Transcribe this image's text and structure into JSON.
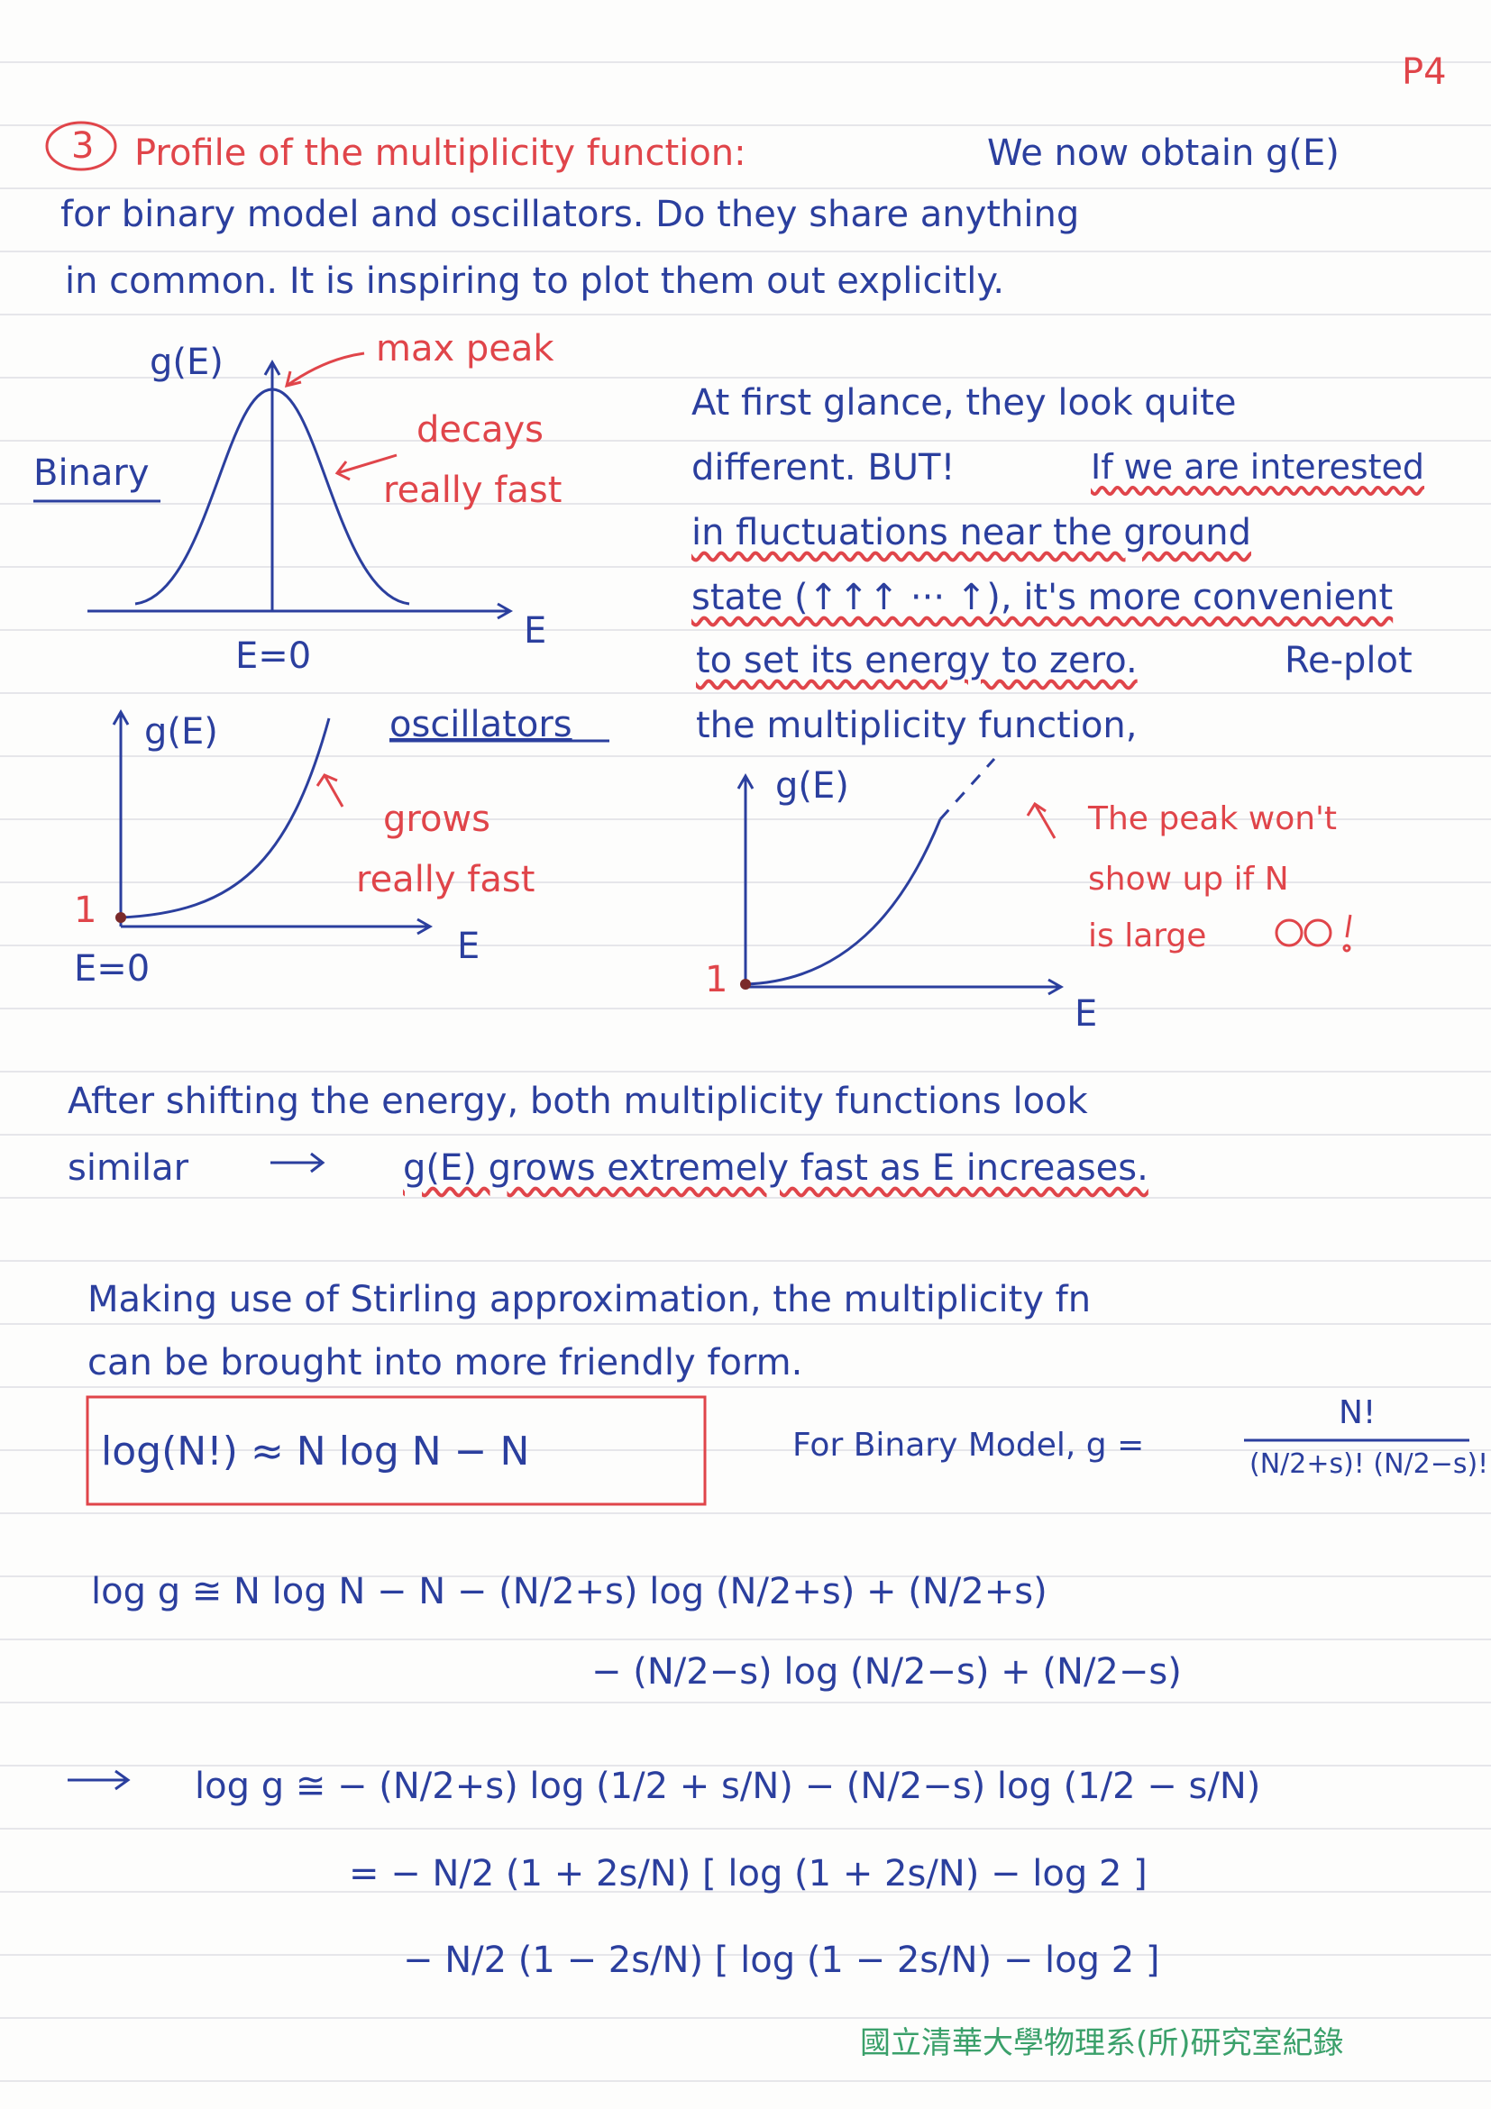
{
  "page_number": "P4",
  "section": {
    "number": "3",
    "title": "Profile of the multiplicity function:",
    "intro": [
      "We now obtain g(E)",
      "for binary model and oscillators. Do they share anything",
      "in common. It is inspiring to plot them out explicitly."
    ]
  },
  "sketches": {
    "binary": {
      "label": "Binary",
      "y_label": "g(E)",
      "x_label": "E",
      "origin": "E=0",
      "notes": [
        "max peak",
        "decays",
        "really fast"
      ]
    },
    "oscillators": {
      "label": "oscillators",
      "y_label": "g(E)",
      "x_label": "E",
      "origin": "E=0",
      "intercept": "1",
      "notes": [
        "grows",
        "really fast"
      ]
    },
    "shifted": {
      "y_label": "g(E)",
      "x_label": "E",
      "intercept": "1",
      "notes": [
        "The peak won't",
        "show up if N",
        "is large"
      ]
    }
  },
  "discussion": [
    "At first glance, they look quite",
    "different. BUT!",
    "If we are interested",
    "in fluctuations near the ground",
    "state (↑↑↑ ··· ↑), it's more convenient",
    "to set its energy to zero.",
    "Re-plot",
    "the multiplicity function,"
  ],
  "conclusion": [
    "After shifting the energy, both multiplicity functions look",
    "similar",
    "g(E) grows extremely fast as E increases."
  ],
  "stirling": {
    "text": [
      "Making use of Stirling approximation, the multiplicity fn",
      "can be brought into more friendly form."
    ],
    "formula": "log(N!) ≈ N log N − N",
    "binary_label": "For Binary Model,  g =",
    "numerator": "N!",
    "denominator": "(N/2+s)! (N/2−s)!"
  },
  "derivation": [
    "log g ≅ N log N − N − (N/2+s) log (N/2+s) + (N/2+s)",
    "− (N/2−s) log (N/2−s) + (N/2−s)",
    "log g ≅ − (N/2+s) log (1/2 + s/N) − (N/2−s) log (1/2 − s/N)",
    "= − N/2 (1 + 2s/N) [ log (1 + 2s/N) − log 2 ]",
    "− N/2 (1 − 2s/N) [ log (1 − 2s/N) − log 2 ]"
  ],
  "footer": "國立清華大學物理系(所)研究室紀錄"
}
